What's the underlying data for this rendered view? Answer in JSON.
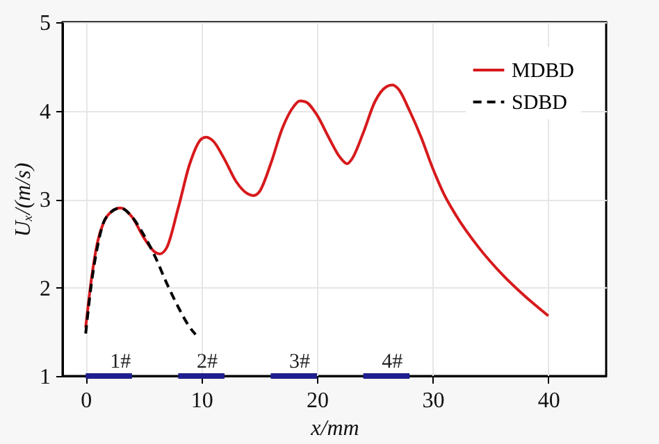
{
  "chart_data": {
    "type": "line",
    "xlabel": "x/mm",
    "ylabel": "Uₓ/(m/s)",
    "xlim": [
      -2,
      45
    ],
    "ylim": [
      1,
      5
    ],
    "xticks": [
      0,
      10,
      20,
      30,
      40
    ],
    "yticks": [
      1,
      2,
      3,
      4,
      5
    ],
    "grid": true,
    "legend": "top right",
    "marker": "none",
    "series": [
      {
        "name": "MDBD",
        "color": "#d7191c",
        "line_style": "solid",
        "x": [
          0,
          0.5,
          1,
          1.5,
          2,
          3,
          4,
          5,
          6,
          6.4,
          7,
          8,
          9,
          10,
          10.4,
          11,
          12,
          13,
          14,
          14.5,
          15,
          16,
          17,
          18,
          18.5,
          19,
          20,
          21,
          22,
          22.6,
          23,
          24,
          25,
          26,
          26.5,
          27,
          28,
          29,
          30,
          31,
          32,
          34,
          36,
          38,
          40
        ],
        "values": [
          1.55,
          2.1,
          2.5,
          2.72,
          2.83,
          2.9,
          2.8,
          2.57,
          2.4,
          2.38,
          2.45,
          2.9,
          3.4,
          3.68,
          3.7,
          3.66,
          3.45,
          3.2,
          3.06,
          3.04,
          3.08,
          3.4,
          3.8,
          4.05,
          4.11,
          4.1,
          3.95,
          3.7,
          3.47,
          3.4,
          3.45,
          3.75,
          4.1,
          4.27,
          4.29,
          4.25,
          4.0,
          3.7,
          3.35,
          3.05,
          2.82,
          2.45,
          2.15,
          1.9,
          1.68
        ]
      },
      {
        "name": "SDBD",
        "color": "#000000",
        "line_style": "dashed",
        "x": [
          0,
          0.5,
          1,
          1.5,
          2,
          3,
          4,
          5,
          6,
          7,
          8,
          9,
          9.5
        ],
        "values": [
          1.48,
          2.05,
          2.45,
          2.72,
          2.83,
          2.9,
          2.8,
          2.6,
          2.35,
          2.05,
          1.78,
          1.55,
          1.47
        ]
      },
      {
        "color": "#1f1f8f",
        "line_style": "solid",
        "x": [
          0,
          4
        ],
        "values": [
          1,
          1
        ]
      },
      {
        "color": "#1f1f8f",
        "line_style": "solid",
        "x": [
          8,
          12
        ],
        "values": [
          1,
          1
        ]
      },
      {
        "color": "#1f1f8f",
        "line_style": "solid",
        "x": [
          16,
          20
        ],
        "values": [
          1,
          1
        ]
      },
      {
        "color": "#1f1f8f",
        "line_style": "solid",
        "x": [
          24,
          28
        ],
        "values": [
          1,
          1
        ]
      }
    ],
    "annotations": [
      {
        "text": "1#",
        "x": 3,
        "y": 1.05
      },
      {
        "text": "2#",
        "x": 10.5,
        "y": 1.05
      },
      {
        "text": "3#",
        "x": 18.5,
        "y": 1.05
      },
      {
        "text": "4#",
        "x": 26.5,
        "y": 1.05
      }
    ]
  }
}
